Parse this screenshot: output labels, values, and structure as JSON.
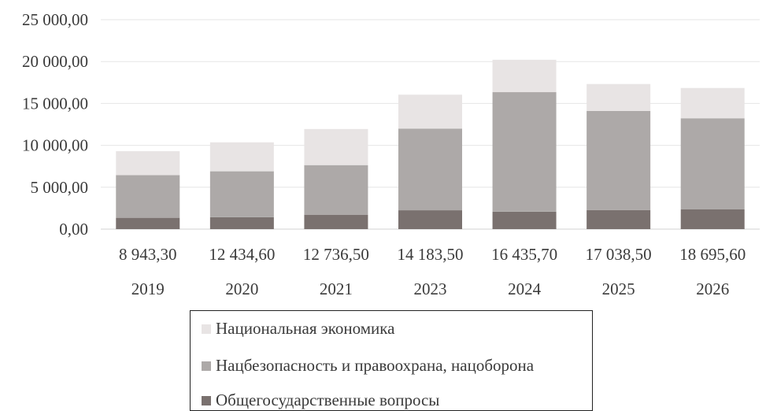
{
  "chart_data": {
    "type": "bar",
    "stacked": true,
    "categories": [
      "2019",
      "2020",
      "2021",
      "2023",
      "2024",
      "2025",
      "2026"
    ],
    "category_value_labels": [
      "8 943,30",
      "12 434,60",
      "12 736,50",
      "14 183,50",
      "16 435,70",
      "17 038,50",
      "18 695,60"
    ],
    "series": [
      {
        "name": "Общегосударственные вопросы",
        "color": "#7a716f",
        "values": [
          1350,
          1420,
          1720,
          2250,
          2080,
          2280,
          2350
        ]
      },
      {
        "name": "Нацбезопасность и правоохрана, нацоборона",
        "color": "#ada9a8",
        "values": [
          5100,
          5480,
          5920,
          9750,
          14270,
          11830,
          10880
        ]
      },
      {
        "name": "Национальная экономика",
        "color": "#e8e4e4",
        "values": [
          2850,
          3460,
          4310,
          4050,
          3870,
          3210,
          3620
        ]
      }
    ],
    "yticks": [
      "0,00",
      "5 000,00",
      "10 000,00",
      "15 000,00",
      "20 000,00",
      "25 000,00"
    ],
    "ylim": [
      0,
      25000
    ],
    "grid": true,
    "legend_position": "bottom"
  }
}
